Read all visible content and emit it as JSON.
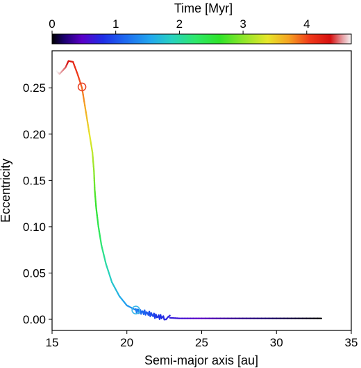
{
  "chart_data": {
    "type": "scatter",
    "title": "",
    "xlabel": "Semi-major axis [au]",
    "ylabel": "Eccentricity",
    "xlim": [
      15,
      35
    ],
    "ylim": [
      -0.012,
      0.29
    ],
    "xticks": [
      15,
      20,
      25,
      30,
      35
    ],
    "yticks": [
      0.0,
      0.05,
      0.1,
      0.15,
      0.2,
      0.25
    ],
    "grid": false,
    "colorbar": {
      "label": "Time [Myr]",
      "range": [
        0,
        4.7
      ],
      "ticks": [
        0,
        1,
        2,
        3,
        4
      ],
      "colormap": "gist_ncar-like",
      "placement": "top"
    },
    "series": [
      {
        "color_by": "time",
        "points": [
          {
            "a": 33.0,
            "e": 0.001,
            "t": 0.0
          },
          {
            "a": 31.0,
            "e": 0.001,
            "t": 0.1
          },
          {
            "a": 29.0,
            "e": 0.001,
            "t": 0.2
          },
          {
            "a": 27.0,
            "e": 0.001,
            "t": 0.3
          },
          {
            "a": 25.0,
            "e": 0.001,
            "t": 0.45
          },
          {
            "a": 23.5,
            "e": 0.001,
            "t": 0.6
          },
          {
            "a": 22.5,
            "e": 0.002,
            "t": 0.75
          },
          {
            "a": 22.0,
            "e": 0.003,
            "t": 0.85
          },
          {
            "a": 21.5,
            "e": 0.006,
            "t": 1.0
          },
          {
            "a": 21.0,
            "e": 0.008,
            "t": 1.15
          },
          {
            "a": 20.6,
            "e": 0.01,
            "t": 1.3
          },
          {
            "a": 20.0,
            "e": 0.015,
            "t": 1.45
          },
          {
            "a": 19.5,
            "e": 0.025,
            "t": 1.6
          },
          {
            "a": 19.0,
            "e": 0.04,
            "t": 1.8
          },
          {
            "a": 18.6,
            "e": 0.06,
            "t": 2.0
          },
          {
            "a": 18.3,
            "e": 0.08,
            "t": 2.2
          },
          {
            "a": 18.1,
            "e": 0.1,
            "t": 2.4
          },
          {
            "a": 17.95,
            "e": 0.12,
            "t": 2.6
          },
          {
            "a": 17.85,
            "e": 0.14,
            "t": 2.8
          },
          {
            "a": 17.8,
            "e": 0.16,
            "t": 3.0
          },
          {
            "a": 17.7,
            "e": 0.18,
            "t": 3.2
          },
          {
            "a": 17.5,
            "e": 0.2,
            "t": 3.4
          },
          {
            "a": 17.3,
            "e": 0.22,
            "t": 3.6
          },
          {
            "a": 17.0,
            "e": 0.25,
            "t": 3.9
          },
          {
            "a": 16.7,
            "e": 0.265,
            "t": 4.05
          },
          {
            "a": 16.4,
            "e": 0.278,
            "t": 4.2
          },
          {
            "a": 16.1,
            "e": 0.279,
            "t": 4.3
          },
          {
            "a": 15.9,
            "e": 0.272,
            "t": 4.45
          },
          {
            "a": 15.5,
            "e": 0.265,
            "t": 4.6
          },
          {
            "a": 15.3,
            "e": 0.268,
            "t": 4.7
          }
        ]
      }
    ],
    "markers": [
      {
        "shape": "open-circle",
        "a": 17.0,
        "e": 0.251,
        "color": "#e8452a"
      },
      {
        "shape": "open-circle",
        "a": 20.6,
        "e": 0.01,
        "color": "#3ab7e8"
      }
    ]
  }
}
